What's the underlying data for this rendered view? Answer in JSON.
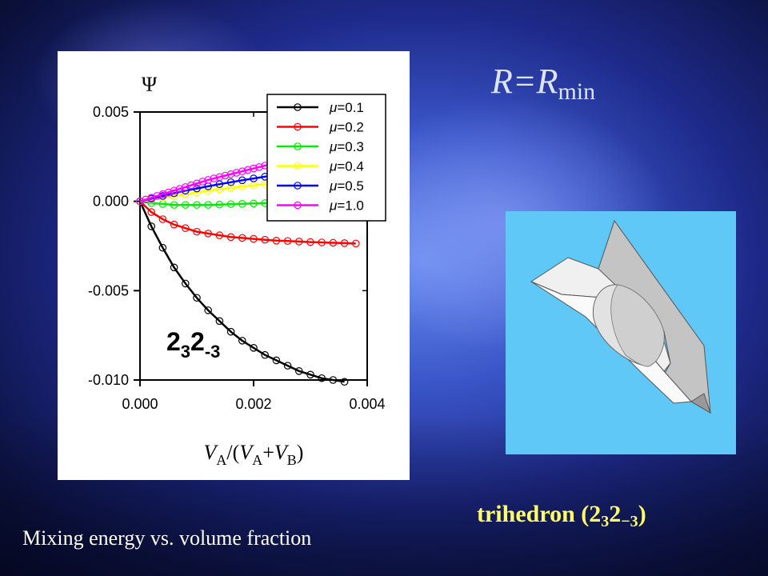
{
  "slide": {
    "title_main": "R=R",
    "title_sub": "min",
    "caption_prefix": "trihedron (2",
    "caption_sub1": "3",
    "caption_mid": "2",
    "caption_sub2": "−3",
    "caption_suffix": ")",
    "footer": "Mixing energy vs. volume fraction"
  },
  "chart_data": {
    "type": "line",
    "ylabel": "Ψ",
    "xlabel_parts": [
      "V",
      "A",
      "/(",
      "V",
      "A",
      "+",
      "V",
      "B",
      ")"
    ],
    "annotation": {
      "base": "2",
      "sub1": "3",
      "mid": "2",
      "sub2": "-3"
    },
    "xlim": [
      0,
      0.004
    ],
    "ylim": [
      -0.01,
      0.005
    ],
    "xticks": [
      "0.000",
      "0.002",
      "0.004"
    ],
    "yticks": [
      "0.005",
      "0.000",
      "-0.005",
      "-0.010"
    ],
    "legend_placement": "top-right",
    "series": [
      {
        "name": "μ=0.1",
        "label_var": "μ",
        "label_val": "=0.1",
        "color": "#000000",
        "x": [
          0,
          0.0002,
          0.0004,
          0.0006,
          0.0008,
          0.001,
          0.0012,
          0.0014,
          0.0016,
          0.0018,
          0.002,
          0.0022,
          0.0024,
          0.0026,
          0.0028,
          0.003,
          0.0032,
          0.0034,
          0.0036
        ],
        "y": [
          0,
          -0.0014,
          -0.0026,
          -0.0037,
          -0.0046,
          -0.0054,
          -0.0061,
          -0.0067,
          -0.0073,
          -0.0078,
          -0.0082,
          -0.0086,
          -0.0089,
          -0.0092,
          -0.0095,
          -0.0097,
          -0.0099,
          -0.01,
          -0.0101
        ]
      },
      {
        "name": "μ=0.2",
        "label_var": "μ",
        "label_val": "=0.2",
        "color": "#ff0000",
        "x": [
          0,
          0.0002,
          0.0004,
          0.0006,
          0.0008,
          0.001,
          0.0012,
          0.0014,
          0.0016,
          0.0018,
          0.002,
          0.0022,
          0.0024,
          0.0026,
          0.0028,
          0.003,
          0.0032,
          0.0034,
          0.0036,
          0.0038
        ],
        "y": [
          0,
          -0.0006,
          -0.001,
          -0.0013,
          -0.0015,
          -0.0017,
          -0.0018,
          -0.0019,
          -0.002,
          -0.00205,
          -0.0021,
          -0.00215,
          -0.0022,
          -0.00222,
          -0.00225,
          -0.00228,
          -0.0023,
          -0.00232,
          -0.00234,
          -0.00236
        ]
      },
      {
        "name": "μ=0.3",
        "label_var": "μ",
        "label_val": "=0.3",
        "color": "#00ee00",
        "x": [
          0,
          0.0002,
          0.0004,
          0.0006,
          0.0008,
          0.001,
          0.0012,
          0.0014,
          0.0016,
          0.0018,
          0.002,
          0.0022,
          0.0024
        ],
        "y": [
          0,
          -0.0001,
          -0.00015,
          -0.0002,
          -0.0002,
          -0.0002,
          -0.0002,
          -0.00018,
          -0.00016,
          -0.00014,
          -0.00012,
          -0.0001,
          -8e-05
        ]
      },
      {
        "name": "μ=0.4",
        "label_var": "μ",
        "label_val": "=0.4",
        "color": "#ffff00",
        "x": [
          0,
          0.0002,
          0.0004,
          0.0006,
          0.0008,
          0.001,
          0.0012,
          0.0014,
          0.0016,
          0.0018,
          0.002,
          0.0022,
          0.0024
        ],
        "y": [
          0,
          0.0001,
          0.0002,
          0.0003,
          0.0004,
          0.0005,
          0.0006,
          0.00068,
          0.00076,
          0.00083,
          0.0009,
          0.00097,
          0.00104
        ]
      },
      {
        "name": "μ=0.5",
        "label_var": "μ",
        "label_val": "=0.5",
        "color": "#0000ff",
        "x": [
          0,
          0.0002,
          0.0004,
          0.0006,
          0.0008,
          0.001,
          0.0012,
          0.0014,
          0.0016,
          0.0018,
          0.002,
          0.0022,
          0.0024
        ],
        "y": [
          0,
          0.00015,
          0.0003,
          0.00045,
          0.0006,
          0.00072,
          0.00084,
          0.00096,
          0.00107,
          0.00118,
          0.00128,
          0.00138,
          0.00148
        ]
      },
      {
        "name": "μ=1.0",
        "label_var": "μ",
        "label_val": "=1.0",
        "color": "#ff00ff",
        "x": [
          0,
          0.0001,
          0.0002,
          0.0003,
          0.0004,
          0.0005,
          0.0006,
          0.0007,
          0.0008,
          0.0009,
          0.001,
          0.0011,
          0.0012,
          0.0013,
          0.0014,
          0.0015,
          0.0016,
          0.0017,
          0.0018,
          0.0019,
          0.002,
          0.0021,
          0.0022,
          0.0023,
          0.0024
        ],
        "y": [
          0,
          0.0001,
          0.0002,
          0.0003,
          0.0004,
          0.0005,
          0.0006,
          0.0007,
          0.0008,
          0.0009,
          0.001,
          0.0011,
          0.0012,
          0.00128,
          0.00136,
          0.00144,
          0.00152,
          0.0016,
          0.00168,
          0.00176,
          0.00184,
          0.00192,
          0.002,
          0.00208,
          0.00216
        ]
      }
    ]
  }
}
